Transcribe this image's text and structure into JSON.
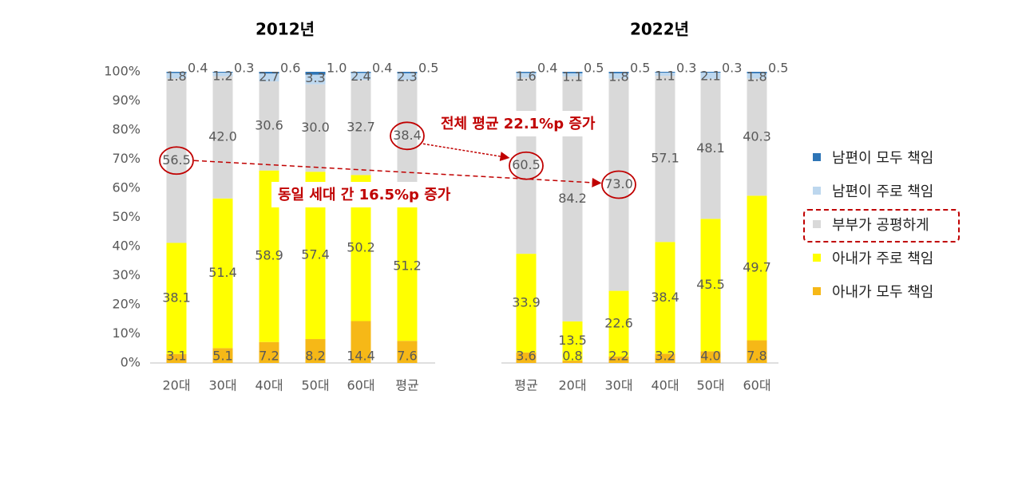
{
  "chart_data": [
    {
      "type": "bar",
      "stacked": true,
      "title": "2012년",
      "categories": [
        "20대",
        "30대",
        "40대",
        "50대",
        "60대",
        "평균"
      ],
      "series": [
        {
          "name": "아내가 모두 책임",
          "values": [
            3.1,
            5.1,
            7.2,
            8.2,
            14.4,
            7.6
          ]
        },
        {
          "name": "아내가 주로 책임",
          "values": [
            38.1,
            51.4,
            58.9,
            57.4,
            50.2,
            51.2
          ]
        },
        {
          "name": "부부가 공평하게",
          "values": [
            56.5,
            42.0,
            30.6,
            30.0,
            32.7,
            38.4
          ]
        },
        {
          "name": "남편이 주로 책임",
          "values": [
            1.8,
            1.2,
            2.7,
            3.3,
            2.4,
            2.3
          ]
        },
        {
          "name": "남편이 모두 책임",
          "values": [
            0.4,
            0.3,
            0.6,
            1.0,
            0.4,
            0.5
          ]
        }
      ],
      "ylim": [
        0,
        100
      ],
      "yticks": [
        "0%",
        "10%",
        "20%",
        "30%",
        "40%",
        "50%",
        "60%",
        "70%",
        "80%",
        "90%",
        "100%"
      ],
      "grid": true
    },
    {
      "type": "bar",
      "stacked": true,
      "title": "2022년",
      "categories": [
        "평균",
        "20대",
        "30대",
        "40대",
        "50대",
        "60대"
      ],
      "series": [
        {
          "name": "아내가 모두 책임",
          "values": [
            3.6,
            0.8,
            2.2,
            3.2,
            4.0,
            7.8
          ]
        },
        {
          "name": "아내가 주로 책임",
          "values": [
            33.9,
            13.5,
            22.6,
            38.4,
            45.5,
            49.7
          ]
        },
        {
          "name": "부부가 공평하게",
          "values": [
            60.5,
            84.2,
            73.0,
            57.1,
            48.1,
            40.3
          ]
        },
        {
          "name": "남편이 주로 책임",
          "values": [
            1.6,
            1.1,
            1.8,
            1.1,
            2.1,
            1.8
          ]
        },
        {
          "name": "남편이 모두 책임",
          "values": [
            0.4,
            0.5,
            0.5,
            0.3,
            0.3,
            0.5
          ]
        }
      ],
      "ylim": [
        0,
        100
      ],
      "grid": true
    }
  ],
  "annotations": {
    "same_generation": "동일 세대 간 16.5%p 증가",
    "overall_average": "전체 평균 22.1%p 증가"
  },
  "legend": {
    "position": "right",
    "items": [
      {
        "label": "남편이 모두 책임",
        "color": "#2e75b6"
      },
      {
        "label": "남편이 주로 책임",
        "color": "#bdd7ee"
      },
      {
        "label": "부부가 공평하게",
        "color": "#d9d9d9",
        "highlighted": true
      },
      {
        "label": "아내가 주로 책임",
        "color": "#ffff00"
      },
      {
        "label": "아내가 모두 책임",
        "color": "#f6b817"
      }
    ]
  },
  "colors": {
    "husband_all": "#2e75b6",
    "husband_mostly": "#bdd7ee",
    "equal": "#d9d9d9",
    "wife_mostly": "#ffff00",
    "wife_all": "#f6b817",
    "annotation": "#c00000",
    "text": "#595959"
  }
}
